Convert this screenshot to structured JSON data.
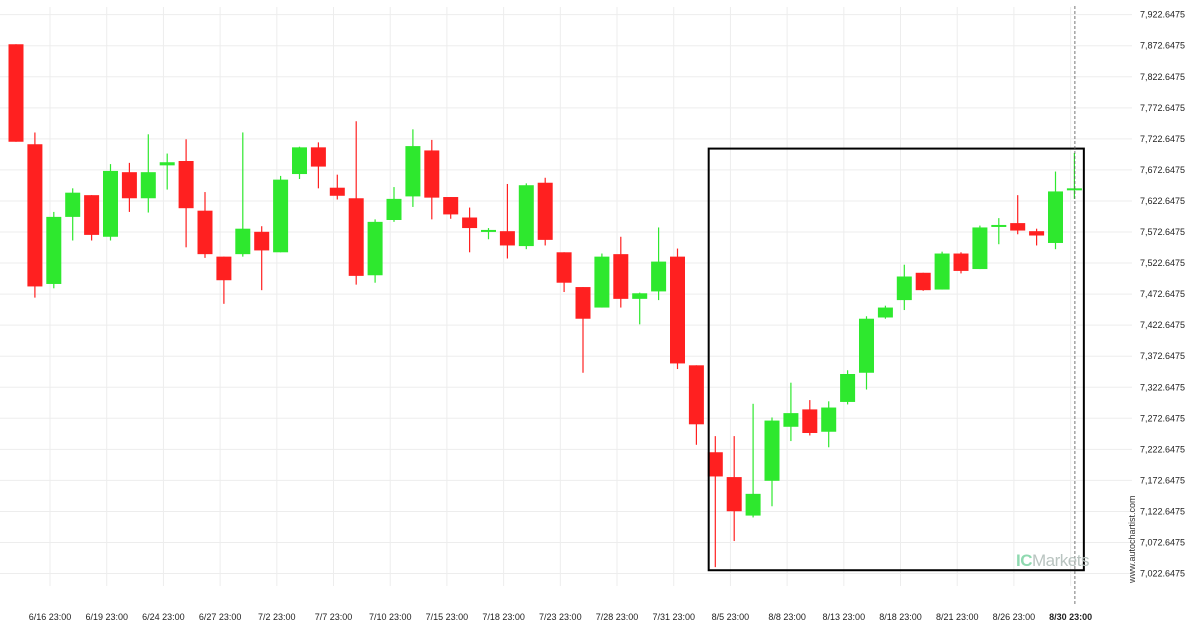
{
  "chart_data": {
    "type": "candlestick",
    "y_ticks": [
      "7,922.6475",
      "7,872.6475",
      "7,822.6475",
      "7,772.6475",
      "7,722.6475",
      "7,672.6475",
      "7,622.6475",
      "7,572.6475",
      "7,522.6475",
      "7,472.6475",
      "7,422.6475",
      "7,372.6475",
      "7,322.6475",
      "7,272.6475",
      "7,222.6475",
      "7,172.6475",
      "7,122.6475",
      "7,072.6475",
      "7,022.6475"
    ],
    "x_ticks": [
      "6/16 23:00",
      "6/19 23:00",
      "6/24 23:00",
      "6/27 23:00",
      "7/2 23:00",
      "7/7 23:00",
      "7/10 23:00",
      "7/15 23:00",
      "7/18 23:00",
      "7/23 23:00",
      "7/28 23:00",
      "7/31 23:00",
      "8/5 23:00",
      "8/8 23:00",
      "8/13 23:00",
      "8/18 23:00",
      "8/21 23:00",
      "8/26 23:00",
      "8/30 23:00"
    ],
    "highlighted_x_tick": "8/30 23:00",
    "ylim": [
      7002.6,
      7935.0
    ],
    "grid": true,
    "colors": {
      "up": "#2ee82e",
      "down": "#ff2020",
      "box": "#000000",
      "grid": "#ededed"
    },
    "candles": [
      {
        "o": 7875,
        "h": 7875,
        "l": 7718,
        "c": 7718
      },
      {
        "o": 7714,
        "h": 7733,
        "l": 7467,
        "c": 7485
      },
      {
        "o": 7489,
        "h": 7605,
        "l": 7482,
        "c": 7597
      },
      {
        "o": 7597,
        "h": 7643,
        "l": 7559,
        "c": 7636
      },
      {
        "o": 7632,
        "h": 7632,
        "l": 7559,
        "c": 7568
      },
      {
        "o": 7565,
        "h": 7682,
        "l": 7559,
        "c": 7671
      },
      {
        "o": 7669,
        "h": 7684,
        "l": 7605,
        "c": 7627
      },
      {
        "o": 7627,
        "h": 7730,
        "l": 7604,
        "c": 7669
      },
      {
        "o": 7680,
        "h": 7699,
        "l": 7641,
        "c": 7685
      },
      {
        "o": 7687,
        "h": 7722,
        "l": 7548,
        "c": 7611
      },
      {
        "o": 7607,
        "h": 7637,
        "l": 7531,
        "c": 7537
      },
      {
        "o": 7533,
        "h": 7533,
        "l": 7457,
        "c": 7495
      },
      {
        "o": 7537,
        "h": 7733,
        "l": 7533,
        "c": 7578
      },
      {
        "o": 7573,
        "h": 7582,
        "l": 7479,
        "c": 7543
      },
      {
        "o": 7540,
        "h": 7663,
        "l": 7540,
        "c": 7657
      },
      {
        "o": 7666,
        "h": 7710,
        "l": 7658,
        "c": 7709
      },
      {
        "o": 7709,
        "h": 7717,
        "l": 7643,
        "c": 7678
      },
      {
        "o": 7644,
        "h": 7665,
        "l": 7625,
        "c": 7631
      },
      {
        "o": 7627,
        "h": 7751,
        "l": 7488,
        "c": 7502
      },
      {
        "o": 7503,
        "h": 7593,
        "l": 7491,
        "c": 7589
      },
      {
        "o": 7592,
        "h": 7645,
        "l": 7589,
        "c": 7626
      },
      {
        "o": 7630,
        "h": 7738,
        "l": 7613,
        "c": 7711
      },
      {
        "o": 7704,
        "h": 7721,
        "l": 7593,
        "c": 7628
      },
      {
        "o": 7629,
        "h": 7629,
        "l": 7594,
        "c": 7601
      },
      {
        "o": 7596,
        "h": 7612,
        "l": 7540,
        "c": 7579
      },
      {
        "o": 7574,
        "h": 7579,
        "l": 7561,
        "c": 7576
      },
      {
        "o": 7574,
        "h": 7650,
        "l": 7530,
        "c": 7551
      },
      {
        "o": 7550,
        "h": 7651,
        "l": 7545,
        "c": 7648
      },
      {
        "o": 7652,
        "h": 7660,
        "l": 7551,
        "c": 7560
      },
      {
        "o": 7540,
        "h": 7540,
        "l": 7476,
        "c": 7491
      },
      {
        "o": 7484,
        "h": 7484,
        "l": 7346,
        "c": 7433
      },
      {
        "o": 7451,
        "h": 7538,
        "l": 7451,
        "c": 7533
      },
      {
        "o": 7537,
        "h": 7565,
        "l": 7451,
        "c": 7465
      },
      {
        "o": 7465,
        "h": 7475,
        "l": 7424,
        "c": 7474
      },
      {
        "o": 7477,
        "h": 7580,
        "l": 7463,
        "c": 7525
      },
      {
        "o": 7533,
        "h": 7546,
        "l": 7352,
        "c": 7361
      },
      {
        "o": 7358,
        "h": 7358,
        "l": 7230,
        "c": 7263
      },
      {
        "o": 7218,
        "h": 7244,
        "l": 7033,
        "c": 7179
      },
      {
        "o": 7178,
        "h": 7244,
        "l": 7075,
        "c": 7123
      },
      {
        "o": 7116,
        "h": 7296,
        "l": 7113,
        "c": 7151
      },
      {
        "o": 7172,
        "h": 7274,
        "l": 7131,
        "c": 7269
      },
      {
        "o": 7259,
        "h": 7330,
        "l": 7236,
        "c": 7281
      },
      {
        "o": 7287,
        "h": 7302,
        "l": 7245,
        "c": 7249
      },
      {
        "o": 7251,
        "h": 7300,
        "l": 7226,
        "c": 7290
      },
      {
        "o": 7299,
        "h": 7350,
        "l": 7295,
        "c": 7344
      },
      {
        "o": 7346,
        "h": 7437,
        "l": 7319,
        "c": 7433
      },
      {
        "o": 7435,
        "h": 7454,
        "l": 7433,
        "c": 7451
      },
      {
        "o": 7463,
        "h": 7520,
        "l": 7447,
        "c": 7501
      },
      {
        "o": 7507,
        "h": 7507,
        "l": 7478,
        "c": 7479
      },
      {
        "o": 7480,
        "h": 7541,
        "l": 7480,
        "c": 7538
      },
      {
        "o": 7538,
        "h": 7540,
        "l": 7506,
        "c": 7510
      },
      {
        "o": 7513,
        "h": 7583,
        "l": 7513,
        "c": 7580
      },
      {
        "o": 7582,
        "h": 7595,
        "l": 7553,
        "c": 7584
      },
      {
        "o": 7587,
        "h": 7632,
        "l": 7569,
        "c": 7575
      },
      {
        "o": 7574,
        "h": 7578,
        "l": 7551,
        "c": 7567
      },
      {
        "o": 7555,
        "h": 7670,
        "l": 7545,
        "c": 7638
      },
      {
        "o": 7640,
        "h": 7700,
        "l": 7626,
        "c": 7643
      }
    ],
    "pattern_box": {
      "x_from_index": 36.65,
      "x_to_index": 56.5,
      "y_top": 7707,
      "y_bottom": 7028
    },
    "current_marker_index": 56
  },
  "watermark": {
    "brand_left": "IC",
    "brand_right": "Markets"
  },
  "side_text": "www.autochartist.com"
}
